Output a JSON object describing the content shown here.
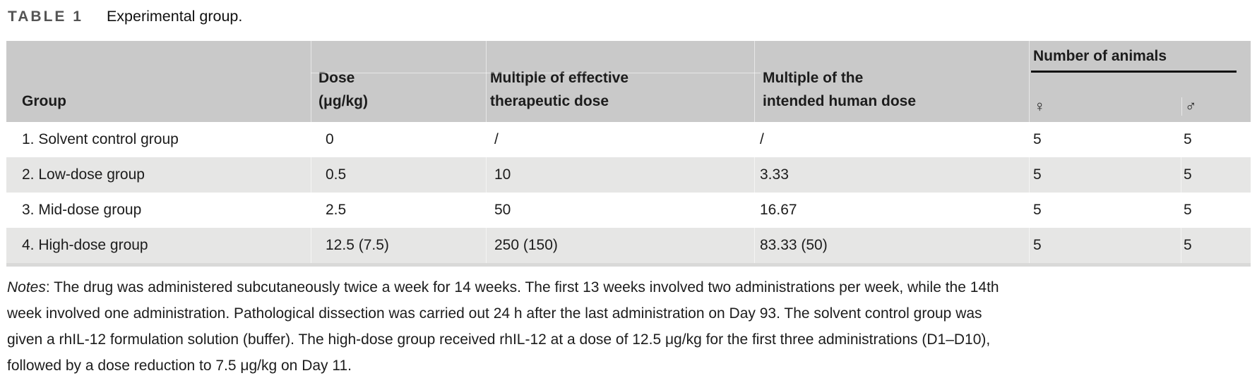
{
  "caption": {
    "label": "TABLE 1",
    "text": "Experimental group."
  },
  "table": {
    "header": {
      "group": "Group",
      "dose": [
        "Dose",
        "(μg/kg)"
      ],
      "multiple_effective": [
        "Multiple of effective",
        "therapeutic dose"
      ],
      "multiple_human": [
        "Multiple of the",
        "intended human dose"
      ],
      "animals_group": "Number of animals",
      "female": "♀",
      "male": "♂"
    },
    "rows": [
      {
        "group": "1. Solvent control group",
        "dose": "0",
        "effective": "/",
        "human": "/",
        "female": "5",
        "male": "5"
      },
      {
        "group": "2. Low-dose group",
        "dose": "0.5",
        "effective": "10",
        "human": "3.33",
        "female": "5",
        "male": "5"
      },
      {
        "group": "3. Mid-dose group",
        "dose": "2.5",
        "effective": "50",
        "human": "16.67",
        "female": "5",
        "male": "5"
      },
      {
        "group": "4. High-dose group",
        "dose": "12.5 (7.5)",
        "effective": "250 (150)",
        "human": "83.33 (50)",
        "female": "5",
        "male": "5"
      }
    ]
  },
  "notes": {
    "label": "Notes",
    "lines": [
      ": The drug was administered subcutaneously twice a week for 14 weeks. The first 13 weeks involved two administrations per week, while the 14th",
      "week involved one administration. Pathological dissection was carried out 24 h after the last administration on Day 93. The solvent control group was",
      "given a rhIL-12 formulation solution (buffer). The high-dose group received rhIL-12 at a dose of 12.5 μg/kg for the first three administrations (D1–D10),",
      "followed by a dose reduction to 7.5 μg/kg on Day 11."
    ]
  },
  "colors": {
    "header_bg": "#c9c9c9",
    "row_alt_bg": "#e6e6e5",
    "bottom_bar": "#d9d9d8",
    "text": "#1c1c1c",
    "title_label": "#545454",
    "rule": "#111111"
  }
}
